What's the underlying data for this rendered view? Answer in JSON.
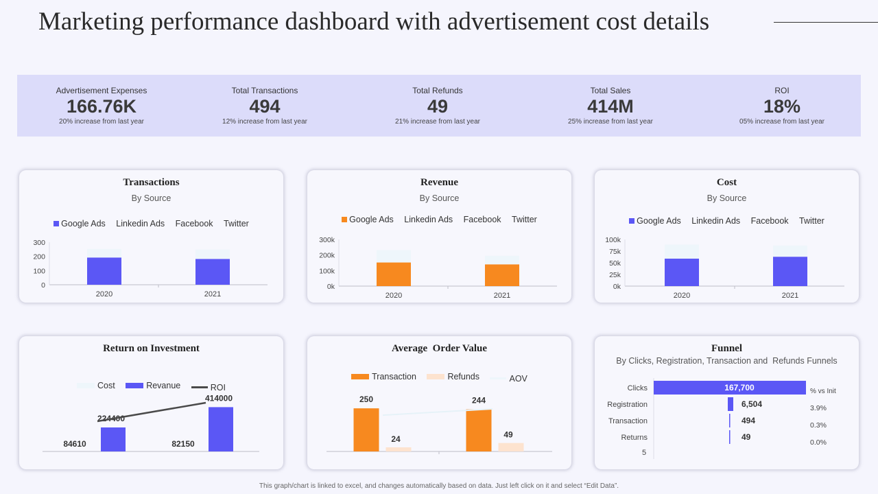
{
  "page": {
    "title": "Marketing performance dashboard with advertisement cost details",
    "footer": "This graph/chart is linked to excel, and changes automatically based on data. Just left click on it and select “Edit Data”."
  },
  "kpis": [
    {
      "label": "Advertisement Expenses",
      "value": "166.76K",
      "note": "20% increase from last year"
    },
    {
      "label": "Total Transactions",
      "value": "494",
      "note": "12% increase from last year"
    },
    {
      "label": "Total Refunds",
      "value": "49",
      "note": "21% increase from last year"
    },
    {
      "label": "Total Sales",
      "value": "414M",
      "note": "25% increase from last year"
    },
    {
      "label": "ROI",
      "value": "18%",
      "note": "05% increase from last year"
    }
  ],
  "colors": {
    "blue": "#5b57f5",
    "orange": "#f7891f",
    "peach": "#fde3cf",
    "pale": "#eef6fb",
    "pale2": "#f0f8fb",
    "line": "#4a4a4a",
    "axis": "#bdbdc8"
  },
  "chart_data": [
    {
      "id": "transactions",
      "type": "bar",
      "stacked": true,
      "title": "Transactions",
      "subtitle": "By Source",
      "categories": [
        "2020",
        "2021"
      ],
      "series": [
        {
          "name": "Google Ads",
          "values": [
            192,
            182
          ]
        },
        {
          "name": "Linkedin Ads",
          "values": [
            0,
            0
          ]
        },
        {
          "name": "Facebook",
          "values": [
            60,
            66
          ]
        },
        {
          "name": "Twitter",
          "values": [
            0,
            0
          ]
        }
      ],
      "ylim": [
        0,
        300
      ],
      "yticks": [
        "0",
        "100",
        "200",
        "300"
      ]
    },
    {
      "id": "revenue",
      "type": "bar",
      "stacked": true,
      "title": "Revenue",
      "subtitle": "By Source",
      "categories": [
        "2020",
        "2021"
      ],
      "series": [
        {
          "name": "Google Ads",
          "values": [
            152000,
            140000
          ]
        },
        {
          "name": "Linkedin Ads",
          "values": [
            0,
            0
          ]
        },
        {
          "name": "Facebook",
          "values": [
            80000,
            55000
          ]
        },
        {
          "name": "Twitter",
          "values": [
            0,
            0
          ]
        }
      ],
      "ylim": [
        0,
        300000
      ],
      "yticks": [
        "0k",
        "100k",
        "200k",
        "300k"
      ]
    },
    {
      "id": "cost",
      "type": "bar",
      "stacked": true,
      "title": "Cost",
      "subtitle": "By Source",
      "categories": [
        "2020",
        "2021"
      ],
      "series": [
        {
          "name": "Google Ads",
          "values": [
            59000,
            63000
          ]
        },
        {
          "name": "Linkedin Ads",
          "values": [
            0,
            0
          ]
        },
        {
          "name": "Facebook",
          "values": [
            30000,
            24000
          ]
        },
        {
          "name": "Twitter",
          "values": [
            0,
            0
          ]
        }
      ],
      "ylim": [
        0,
        100000
      ],
      "yticks": [
        "0k",
        "25k",
        "50k",
        "75k",
        "100k"
      ]
    },
    {
      "id": "roi",
      "type": "bar",
      "title": "Return on Investment",
      "legend": [
        "Cost",
        "Revanue",
        "ROI"
      ],
      "categories": [
        "2020",
        "2021"
      ],
      "series": [
        {
          "name": "Cost",
          "values": [
            84610,
            82150
          ],
          "labels": [
            "84610",
            "82150"
          ]
        },
        {
          "name": "Revanue",
          "values": [
            224400,
            414000
          ],
          "labels": [
            "224400",
            "414000"
          ]
        }
      ],
      "line": {
        "name": "ROI",
        "values": [
          265,
          400
        ]
      },
      "ylim": [
        0,
        500000
      ]
    },
    {
      "id": "aov",
      "type": "bar",
      "title": "Average  Order Value",
      "legend": [
        "Transaction",
        "Refunds",
        "AOV"
      ],
      "categories": [
        "2020",
        "2021"
      ],
      "series": [
        {
          "name": "Transaction",
          "values": [
            250,
            244
          ],
          "labels": [
            "250",
            "244"
          ]
        },
        {
          "name": "Refunds",
          "values": [
            24,
            49
          ],
          "labels": [
            "24",
            "49"
          ]
        }
      ],
      "line": {
        "name": "AOV",
        "values": [
          195,
          235
        ]
      },
      "ylim": [
        0,
        350
      ]
    },
    {
      "id": "funnel",
      "type": "bar",
      "orientation": "horizontal",
      "title": "Funnel",
      "subtitle": "By Clicks, Registration, Transaction and  Refunds Funnels",
      "categories": [
        "Clicks",
        "Registration",
        "Transaction",
        "Returns"
      ],
      "values": [
        167700,
        6504,
        494,
        49
      ],
      "labels": [
        "167,700",
        "6,504",
        "494",
        "49"
      ],
      "pct_header": "% vs Init",
      "pct": [
        "3.9%",
        "0.3%",
        "0.0%"
      ],
      "axis_label": "5"
    }
  ]
}
